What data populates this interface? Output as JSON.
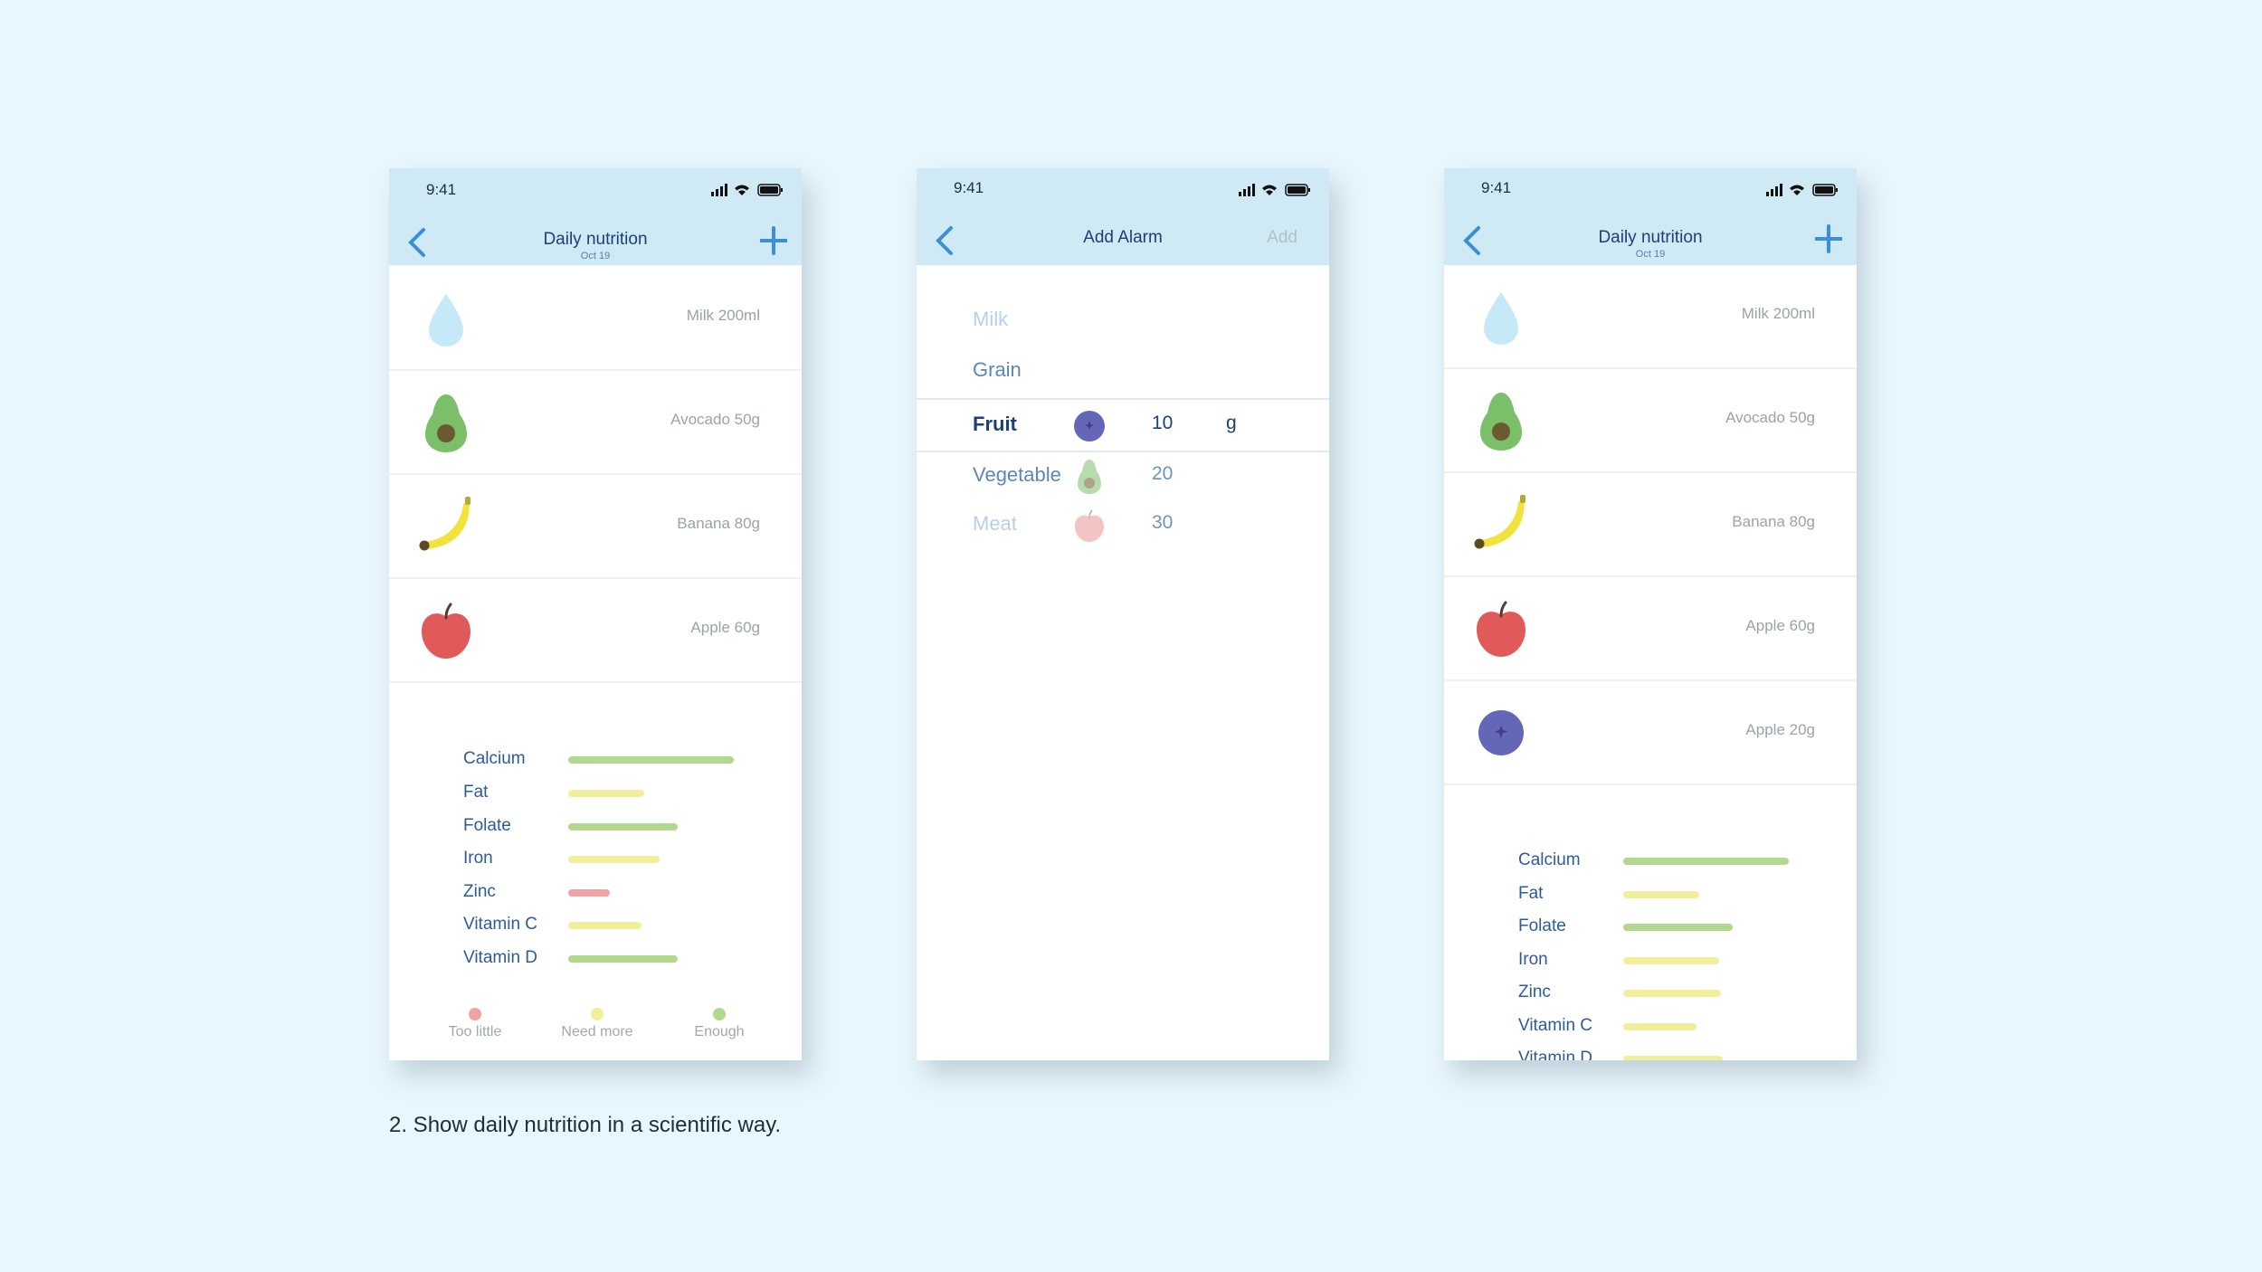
{
  "screen1": {
    "time": "9:41",
    "title": "Daily nutrition",
    "date": "Oct 19",
    "foods": [
      {
        "label": "Milk 200ml",
        "icon": "milk-drop"
      },
      {
        "label": "Avocado 50g",
        "icon": "avocado"
      },
      {
        "label": "Banana 80g",
        "icon": "banana"
      },
      {
        "label": "Apple 60g",
        "icon": "apple"
      }
    ],
    "nutrients": [
      {
        "name": "Calcium",
        "level": 1.0,
        "status": "Enough"
      },
      {
        "name": "Fat",
        "level": 0.46,
        "status": "Need more"
      },
      {
        "name": "Folate",
        "level": 0.66,
        "status": "Enough"
      },
      {
        "name": "Iron",
        "level": 0.55,
        "status": "Need more"
      },
      {
        "name": "Zinc",
        "level": 0.25,
        "status": "Too little"
      },
      {
        "name": "Vitamin C",
        "level": 0.44,
        "status": "Need more"
      },
      {
        "name": "Vitamin D",
        "level": 0.66,
        "status": "Enough"
      }
    ],
    "legend": [
      {
        "label": "Too little",
        "color": "#f0a3a3"
      },
      {
        "label": "Need more",
        "color": "#f2ee9c"
      },
      {
        "label": "Enough",
        "color": "#b2d88e"
      }
    ]
  },
  "screen2": {
    "time": "9:41",
    "title": "Add Alarm",
    "add_label": "Add",
    "rows": [
      {
        "category": "Milk",
        "state": "faded"
      },
      {
        "category": "Grain",
        "state": "normal"
      },
      {
        "category": "Fruit",
        "state": "selected",
        "icon": "blueberry",
        "value": "10",
        "unit": "g"
      },
      {
        "category": "Vegetable",
        "state": "normal",
        "icon": "avocado",
        "value": "20"
      },
      {
        "category": "Meat",
        "state": "faded",
        "icon": "apple",
        "value": "30"
      }
    ]
  },
  "screen3": {
    "time": "9:41",
    "title": "Daily nutrition",
    "date": "Oct 19",
    "foods": [
      {
        "label": "Milk 200ml",
        "icon": "milk-drop"
      },
      {
        "label": "Avocado 50g",
        "icon": "avocado"
      },
      {
        "label": "Banana 80g",
        "icon": "banana"
      },
      {
        "label": "Apple 60g",
        "icon": "apple"
      },
      {
        "label": "Apple 20g",
        "icon": "blueberry"
      }
    ],
    "nutrients": [
      {
        "name": "Calcium",
        "level": 1.0,
        "status": "Enough"
      },
      {
        "name": "Fat",
        "level": 0.46,
        "status": "Need more"
      },
      {
        "name": "Folate",
        "level": 0.66,
        "status": "Enough"
      },
      {
        "name": "Iron",
        "level": 0.58,
        "status": "Need more"
      },
      {
        "name": "Zinc",
        "level": 0.59,
        "status": "Need more"
      },
      {
        "name": "Vitamin C",
        "level": 0.44,
        "status": "Need more"
      },
      {
        "name": "Vitamin D",
        "level": 0.6,
        "status": "Need more"
      }
    ]
  },
  "caption": "2. Show daily nutrition in a scientific way.",
  "colors": {
    "header_bg": "#cfeaf5",
    "accent_blue": "#3c8fd6",
    "title_navy": "#1d3f78",
    "enough": "#b2d88e",
    "need_more": "#f2ee9c",
    "too_little": "#f0a3a3"
  }
}
